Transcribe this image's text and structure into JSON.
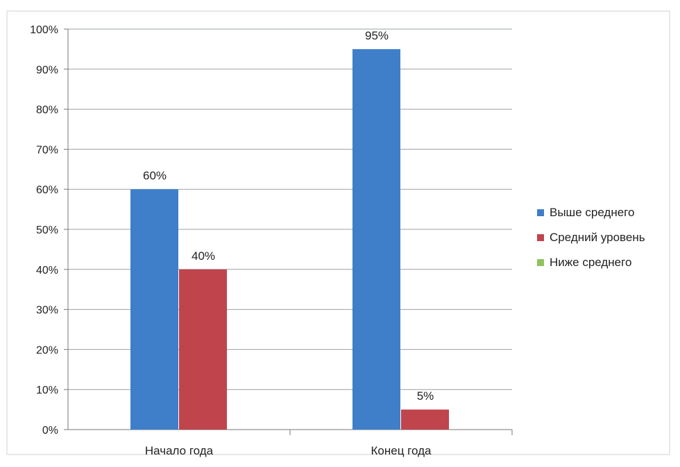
{
  "chart_data": {
    "type": "bar",
    "categories": [
      "Начало года",
      "Конец года"
    ],
    "series": [
      {
        "name": "Выше среднего",
        "values": [
          60,
          95
        ],
        "labels": [
          "60%",
          "95%"
        ],
        "color": "#3f7fc9"
      },
      {
        "name": "Средний  уровень",
        "values": [
          40,
          5
        ],
        "labels": [
          "40%",
          "5%"
        ],
        "color": "#c0444c"
      },
      {
        "name": "Ниже среднего",
        "values": [
          0,
          0
        ],
        "labels": [
          "",
          ""
        ],
        "color": "#8fc35c"
      }
    ],
    "ylim": [
      0,
      100
    ],
    "yticks": [
      "0%",
      "10%",
      "20%",
      "30%",
      "40%",
      "50%",
      "60%",
      "70%",
      "80%",
      "90%",
      "100%"
    ],
    "grid": true,
    "legend": "right",
    "title": "",
    "xlabel": "",
    "ylabel": ""
  }
}
